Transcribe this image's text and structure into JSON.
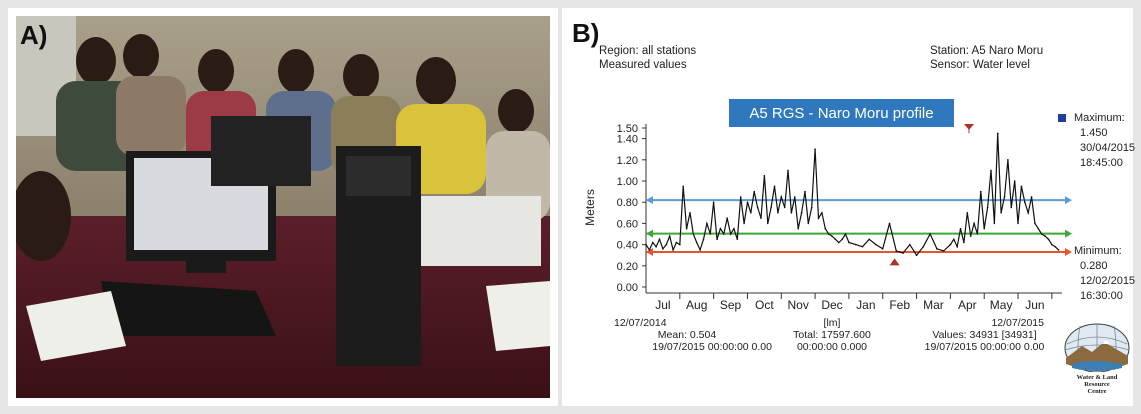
{
  "panel_a": {
    "label": "A)"
  },
  "panel_b": {
    "label": "B)",
    "header": {
      "region_line": "Region: all stations",
      "measured_line": "Measured values",
      "station_line": "Station:  A5 Naro Moru",
      "sensor_line": "Sensor:   Water level"
    },
    "maximum": {
      "label": "Maximum:",
      "value": "1.450",
      "date": "30/04/2015",
      "time": "18:45:00"
    },
    "minimum": {
      "label": "Minimum:",
      "value": "0.280",
      "date": "12/02/2015",
      "time": "16:30:00"
    },
    "footer": {
      "left": [
        "12/07/2014",
        "Mean: 0.504",
        "19/07/2015 00:00:00 0.00"
      ],
      "center": [
        "[lm]",
        "Total: 17597.600",
        "00:00:00  0.000"
      ],
      "right": [
        "12/07/2015",
        "Values: 34931 [34931]",
        "19/07/2015 00:00:00 0.00"
      ]
    },
    "logo": {
      "line1": "Water & Land",
      "line2": "Resource",
      "line3": "Centre"
    }
  },
  "colors": {
    "title_box": "#2f78bd",
    "max_line": "#5b9bd5",
    "mean_line": "#3aaa35",
    "min_line": "#e8552b",
    "series": "#111111",
    "marker_max": "#1f3f9c"
  },
  "chart_data": {
    "type": "line",
    "title": "A5 RGS - Naro Moru profile",
    "ylabel": "Meters",
    "xlabel": "",
    "ylim": [
      0,
      1.5
    ],
    "yticks": [
      "0.00",
      "0.20",
      "0.40",
      "0.60",
      "0.80",
      "1.00",
      "1.20",
      "1.40",
      "1.50"
    ],
    "ytick_values": [
      0,
      0.2,
      0.4,
      0.6,
      0.8,
      1.0,
      1.2,
      1.4,
      1.5
    ],
    "x_labels": [
      "Jul",
      "Aug",
      "Sep",
      "Oct",
      "Nov",
      "Dec",
      "Jan",
      "Feb",
      "Mar",
      "Apr",
      "May",
      "Jun"
    ],
    "x_range_months": [
      0,
      12.3
    ],
    "reference_lines": {
      "maximum": 0.82,
      "mean": 0.504,
      "minimum": 0.33
    },
    "series": [
      {
        "x": [
          0.0,
          0.1,
          0.2,
          0.3,
          0.4,
          0.5,
          0.6,
          0.7,
          0.8,
          0.9,
          1.0,
          1.1,
          1.2,
          1.3,
          1.4,
          1.5,
          1.6,
          1.7,
          1.8,
          1.9,
          2.0,
          2.1,
          2.2,
          2.3,
          2.4,
          2.5,
          2.6,
          2.7,
          2.8,
          2.9,
          3.0,
          3.1,
          3.2,
          3.3,
          3.4,
          3.5,
          3.6,
          3.7,
          3.8,
          3.9,
          4.0,
          4.1,
          4.2,
          4.3,
          4.4,
          4.5,
          4.6,
          4.7,
          4.8,
          4.9,
          5.0,
          5.1,
          5.2,
          5.3,
          5.4,
          5.5,
          5.6,
          5.7,
          5.8,
          5.9,
          6.0,
          6.2,
          6.4,
          6.6,
          6.8,
          7.0,
          7.2,
          7.4,
          7.6,
          7.8,
          8.0,
          8.2,
          8.4,
          8.6,
          8.8,
          9.0,
          9.1,
          9.2,
          9.3,
          9.4,
          9.5,
          9.6,
          9.7,
          9.8,
          9.9,
          10.0,
          10.1,
          10.2,
          10.3,
          10.4,
          10.5,
          10.6,
          10.7,
          10.8,
          10.9,
          11.0,
          11.1,
          11.2,
          11.3,
          11.4,
          11.5,
          11.6,
          11.7,
          11.8,
          11.9,
          12.0,
          12.1,
          12.2
        ],
        "y": [
          0.4,
          0.35,
          0.42,
          0.38,
          0.45,
          0.36,
          0.4,
          0.48,
          0.35,
          0.42,
          0.4,
          0.95,
          0.55,
          0.7,
          0.5,
          0.42,
          0.35,
          0.45,
          0.6,
          0.5,
          0.8,
          0.45,
          0.55,
          0.5,
          0.65,
          0.5,
          0.55,
          0.45,
          0.85,
          0.6,
          0.8,
          0.7,
          0.9,
          0.75,
          0.65,
          1.05,
          0.6,
          0.75,
          0.95,
          0.7,
          0.85,
          0.75,
          1.1,
          0.7,
          0.85,
          0.55,
          0.7,
          0.9,
          0.6,
          0.75,
          1.3,
          0.65,
          0.7,
          0.55,
          0.5,
          0.48,
          0.45,
          0.42,
          0.45,
          0.5,
          0.42,
          0.4,
          0.38,
          0.45,
          0.4,
          0.36,
          0.6,
          0.34,
          0.32,
          0.4,
          0.3,
          0.38,
          0.5,
          0.36,
          0.34,
          0.4,
          0.45,
          0.38,
          0.55,
          0.42,
          0.7,
          0.48,
          0.6,
          0.5,
          0.9,
          0.55,
          0.75,
          1.1,
          0.6,
          1.45,
          0.7,
          0.85,
          1.2,
          0.75,
          1.0,
          0.6,
          0.95,
          0.8,
          0.7,
          0.85,
          0.6,
          0.55,
          0.5,
          0.48,
          0.45,
          0.4,
          0.38,
          0.35
        ]
      }
    ],
    "max_marker": {
      "x": 9.55,
      "y": 1.45
    },
    "min_marker": {
      "x": 7.35,
      "y": 0.28
    }
  }
}
